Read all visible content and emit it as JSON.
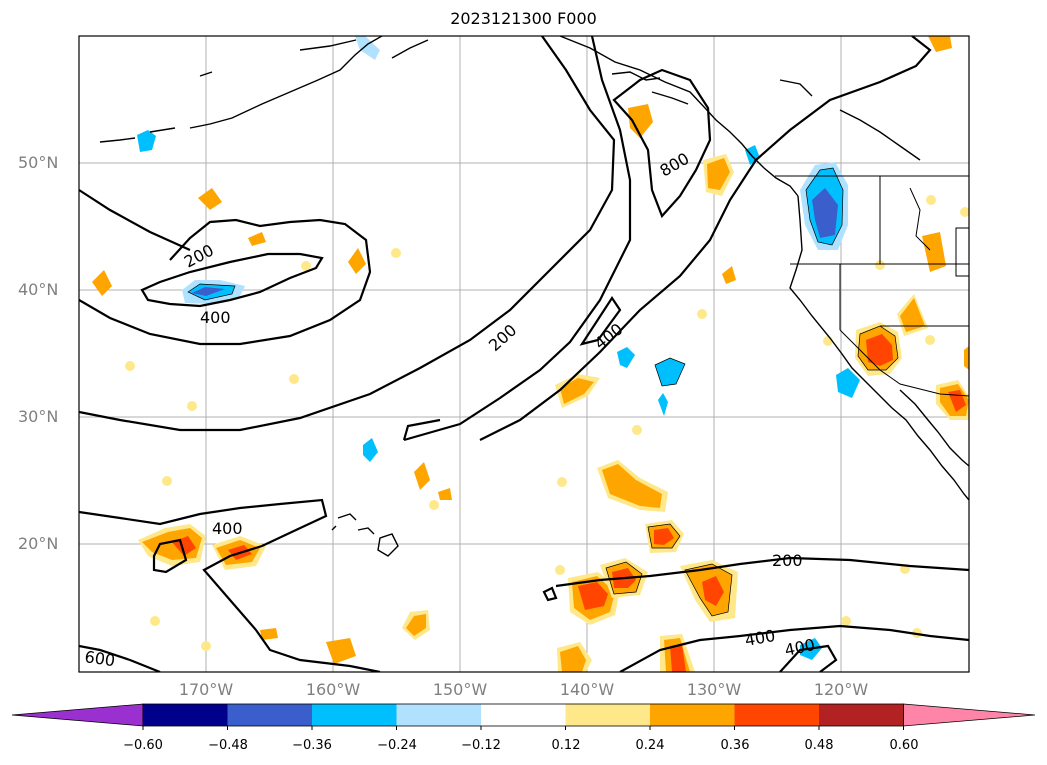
{
  "title": "2023121300 F000",
  "lat_labels": [
    "50°N",
    "40°N",
    "30°N",
    "20°N"
  ],
  "lon_labels": [
    "170°W",
    "160°W",
    "150°W",
    "140°W",
    "130°W",
    "120°W"
  ],
  "contour_labels": [
    "200",
    "400",
    "800",
    "200",
    "400",
    "400",
    "200",
    "400",
    "400",
    "600"
  ],
  "colorbar": {
    "ticks": [
      "−0.60",
      "−0.48",
      "−0.36",
      "−0.24",
      "−0.12",
      "0.12",
      "0.24",
      "0.36",
      "0.48",
      "0.60"
    ],
    "colors": [
      "#9b30d0",
      "#00008b",
      "#3a5fcd",
      "#00bfff",
      "#b0e2ff",
      "#ffffff",
      "#ffe88a",
      "#ffa500",
      "#ff4500",
      "#b22222",
      "#ff85a8"
    ]
  }
}
